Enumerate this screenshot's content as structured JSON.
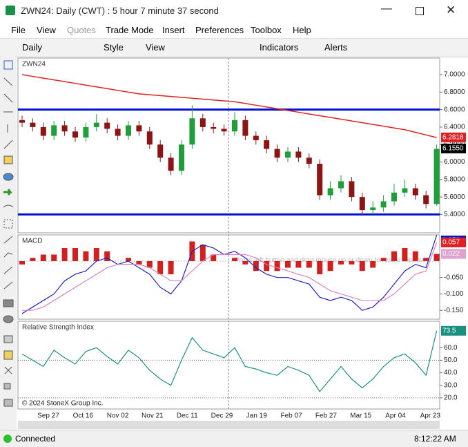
{
  "window": {
    "title": "ZWN24: Daily (CWT) : 5 hour 7 minute 37 second"
  },
  "menu": [
    "File",
    "View",
    "Quotes",
    "Trade Mode",
    "Insert",
    "Preferences",
    "Toolbox",
    "Help"
  ],
  "toolbar": [
    "Daily",
    "Style",
    "View",
    "Indicators",
    "Alerts"
  ],
  "resize_hint": "Press left button and drag mouse up or down to resize window",
  "copyright": "© 2024 StoneX Group Inc.",
  "date_axis": [
    "Sep 27",
    "Oct 16",
    "Nov 02",
    "Nov 21",
    "Dec 11",
    "Dec 29",
    "Jan 19",
    "Feb 07",
    "Feb 27",
    "Mar 15",
    "Apr 04",
    "Apr 23"
  ],
  "status": {
    "text": "Connected",
    "time": "8:12:22 AM"
  },
  "chart_data": [
    {
      "type": "candlestick",
      "title": "ZWN24",
      "up_color": "#1f9e3a",
      "down_color": "#8b1515",
      "open": [
        6.48,
        6.45,
        6.4,
        6.3,
        6.42,
        6.35,
        6.28,
        6.4,
        6.45,
        6.38,
        6.3,
        6.42,
        6.35,
        6.2,
        6.05,
        5.9,
        6.2,
        6.5,
        6.4,
        6.38,
        6.35,
        6.48,
        6.3,
        6.25,
        6.15,
        6.05,
        6.12,
        6.05,
        5.98,
        5.62,
        5.7,
        5.78,
        5.6,
        5.45,
        5.48,
        5.55,
        5.65,
        5.7,
        5.62,
        5.52
      ],
      "high": [
        6.53,
        6.5,
        6.45,
        6.47,
        6.47,
        6.4,
        6.45,
        6.55,
        6.5,
        6.43,
        6.47,
        6.47,
        6.4,
        6.25,
        6.1,
        6.25,
        6.65,
        6.55,
        6.45,
        6.43,
        6.57,
        6.53,
        6.35,
        6.3,
        6.2,
        6.17,
        6.17,
        6.1,
        6.03,
        5.78,
        5.85,
        5.83,
        5.65,
        5.55,
        5.62,
        5.75,
        5.8,
        5.75,
        5.67,
        6.2
      ],
      "low": [
        6.4,
        6.35,
        6.25,
        6.25,
        6.3,
        6.23,
        6.23,
        6.35,
        6.33,
        6.25,
        6.25,
        6.3,
        6.15,
        6.0,
        5.85,
        5.85,
        6.15,
        6.35,
        6.33,
        6.3,
        6.3,
        6.25,
        6.2,
        6.1,
        6.0,
        6.0,
        6.0,
        5.93,
        5.57,
        5.57,
        5.65,
        5.55,
        5.4,
        5.4,
        5.43,
        5.5,
        5.6,
        5.57,
        5.47,
        5.5
      ],
      "close": [
        6.45,
        6.4,
        6.3,
        6.42,
        6.35,
        6.28,
        6.4,
        6.45,
        6.38,
        6.3,
        6.42,
        6.35,
        6.2,
        6.05,
        5.9,
        6.2,
        6.5,
        6.4,
        6.38,
        6.35,
        6.48,
        6.3,
        6.25,
        6.15,
        6.05,
        6.12,
        6.05,
        5.98,
        5.62,
        5.7,
        5.78,
        5.6,
        5.45,
        5.48,
        5.55,
        5.65,
        5.7,
        5.62,
        5.52,
        6.15
      ],
      "ma": {
        "color": "#e02020",
        "values": [
          7.0,
          6.98,
          6.96,
          6.94,
          6.92,
          6.9,
          6.88,
          6.86,
          6.84,
          6.82,
          6.8,
          6.78,
          6.77,
          6.76,
          6.75,
          6.74,
          6.73,
          6.72,
          6.71,
          6.7,
          6.69,
          6.67,
          6.65,
          6.63,
          6.61,
          6.59,
          6.57,
          6.55,
          6.53,
          6.51,
          6.49,
          6.47,
          6.45,
          6.43,
          6.41,
          6.39,
          6.37,
          6.34,
          6.31,
          6.28
        ]
      },
      "hlines": {
        "color": "#0010d0",
        "values": [
          6.6,
          5.4
        ]
      },
      "ylim": [
        5.19,
        7.19
      ],
      "yticks": [
        {
          "value": 7,
          "label": "7.0000"
        },
        {
          "value": 6.8,
          "label": "6.8000"
        },
        {
          "value": 6.6,
          "label": "6.6000"
        },
        {
          "value": 6.4,
          "label": "6.4000"
        },
        {
          "value": 6.2,
          "label": "6.2000"
        },
        {
          "value": 6,
          "label": "6.0000"
        },
        {
          "value": 5.8,
          "label": "5.8000"
        },
        {
          "value": 5.6,
          "label": "5.6000"
        },
        {
          "value": 5.4,
          "label": "5.4000"
        }
      ],
      "markers": [
        {
          "value": 6.2818,
          "color": "#e02020"
        },
        {
          "value": 6.155,
          "label": "6.1550",
          "color": "#000000"
        }
      ]
    },
    {
      "type": "macd",
      "title": "MACD",
      "series": [
        {
          "color": "#2020c0",
          "values": [
            -0.16,
            -0.14,
            -0.12,
            -0.1,
            -0.06,
            -0.04,
            -0.03,
            0.0,
            0.01,
            -0.01,
            0.0,
            -0.02,
            -0.04,
            -0.08,
            -0.1,
            -0.06,
            0.03,
            0.05,
            0.04,
            0.02,
            0.03,
            0.01,
            -0.02,
            -0.04,
            -0.05,
            -0.05,
            -0.06,
            -0.07,
            -0.11,
            -0.12,
            -0.11,
            -0.12,
            -0.15,
            -0.14,
            -0.11,
            -0.07,
            -0.03,
            -0.01,
            -0.02,
            0.079
          ]
        },
        {
          "color": "#e080c0",
          "values": [
            -0.15,
            -0.15,
            -0.14,
            -0.12,
            -0.1,
            -0.08,
            -0.06,
            -0.04,
            -0.02,
            -0.01,
            -0.01,
            -0.01,
            -0.02,
            -0.04,
            -0.06,
            -0.06,
            -0.03,
            0.0,
            0.02,
            0.02,
            0.02,
            0.02,
            0.01,
            -0.01,
            -0.02,
            -0.03,
            -0.04,
            -0.05,
            -0.07,
            -0.09,
            -0.1,
            -0.11,
            -0.12,
            -0.12,
            -0.12,
            -0.1,
            -0.07,
            -0.04,
            -0.03,
            0.057
          ]
        }
      ],
      "histogram": {
        "color": "#d02020",
        "values": [
          -0.01,
          0.01,
          0.02,
          0.02,
          0.04,
          0.04,
          0.03,
          0.04,
          0.03,
          0.0,
          0.01,
          -0.01,
          -0.02,
          -0.04,
          -0.04,
          0.0,
          0.06,
          0.05,
          0.02,
          0.0,
          0.01,
          -0.01,
          -0.03,
          -0.03,
          -0.03,
          -0.02,
          -0.02,
          -0.02,
          -0.04,
          -0.03,
          -0.01,
          -0.01,
          -0.03,
          -0.02,
          0.01,
          0.03,
          0.04,
          0.03,
          0.01,
          0.022
        ]
      },
      "ylim": [
        -0.177,
        0.08
      ],
      "yticks": [
        {
          "value": -0.05,
          "label": "-0.050"
        },
        {
          "value": -0.1,
          "label": "-0.100"
        },
        {
          "value": -0.15,
          "label": "-0.150"
        }
      ],
      "markers": [
        {
          "value": 0.079,
          "color": "#1010d0"
        },
        {
          "value": 0.057,
          "color": "#e02020"
        },
        {
          "value": 0.022,
          "color": "#e0a0d0"
        }
      ]
    },
    {
      "type": "line",
      "title": "Relative Strength Index",
      "series": [
        {
          "color": "#1a9080",
          "values": [
            55,
            50,
            45,
            58,
            52,
            47,
            57,
            60,
            53,
            47,
            58,
            52,
            42,
            35,
            30,
            50,
            68,
            58,
            55,
            52,
            60,
            45,
            43,
            40,
            38,
            45,
            42,
            38,
            25,
            35,
            45,
            35,
            28,
            35,
            45,
            52,
            55,
            48,
            38,
            73.5
          ]
        }
      ],
      "ylim": [
        11.1,
        81.1
      ],
      "yticks": [
        {
          "value": 60,
          "label": "60.0"
        },
        {
          "value": 50,
          "label": "50.0"
        },
        {
          "value": 40,
          "label": "40.0"
        },
        {
          "value": 30,
          "label": "30.0"
        },
        {
          "value": 20,
          "label": "20.0"
        }
      ],
      "guide_lines": [
        50,
        20
      ],
      "markers": [
        {
          "value": 73.5,
          "color": "#1a9080"
        }
      ]
    }
  ]
}
